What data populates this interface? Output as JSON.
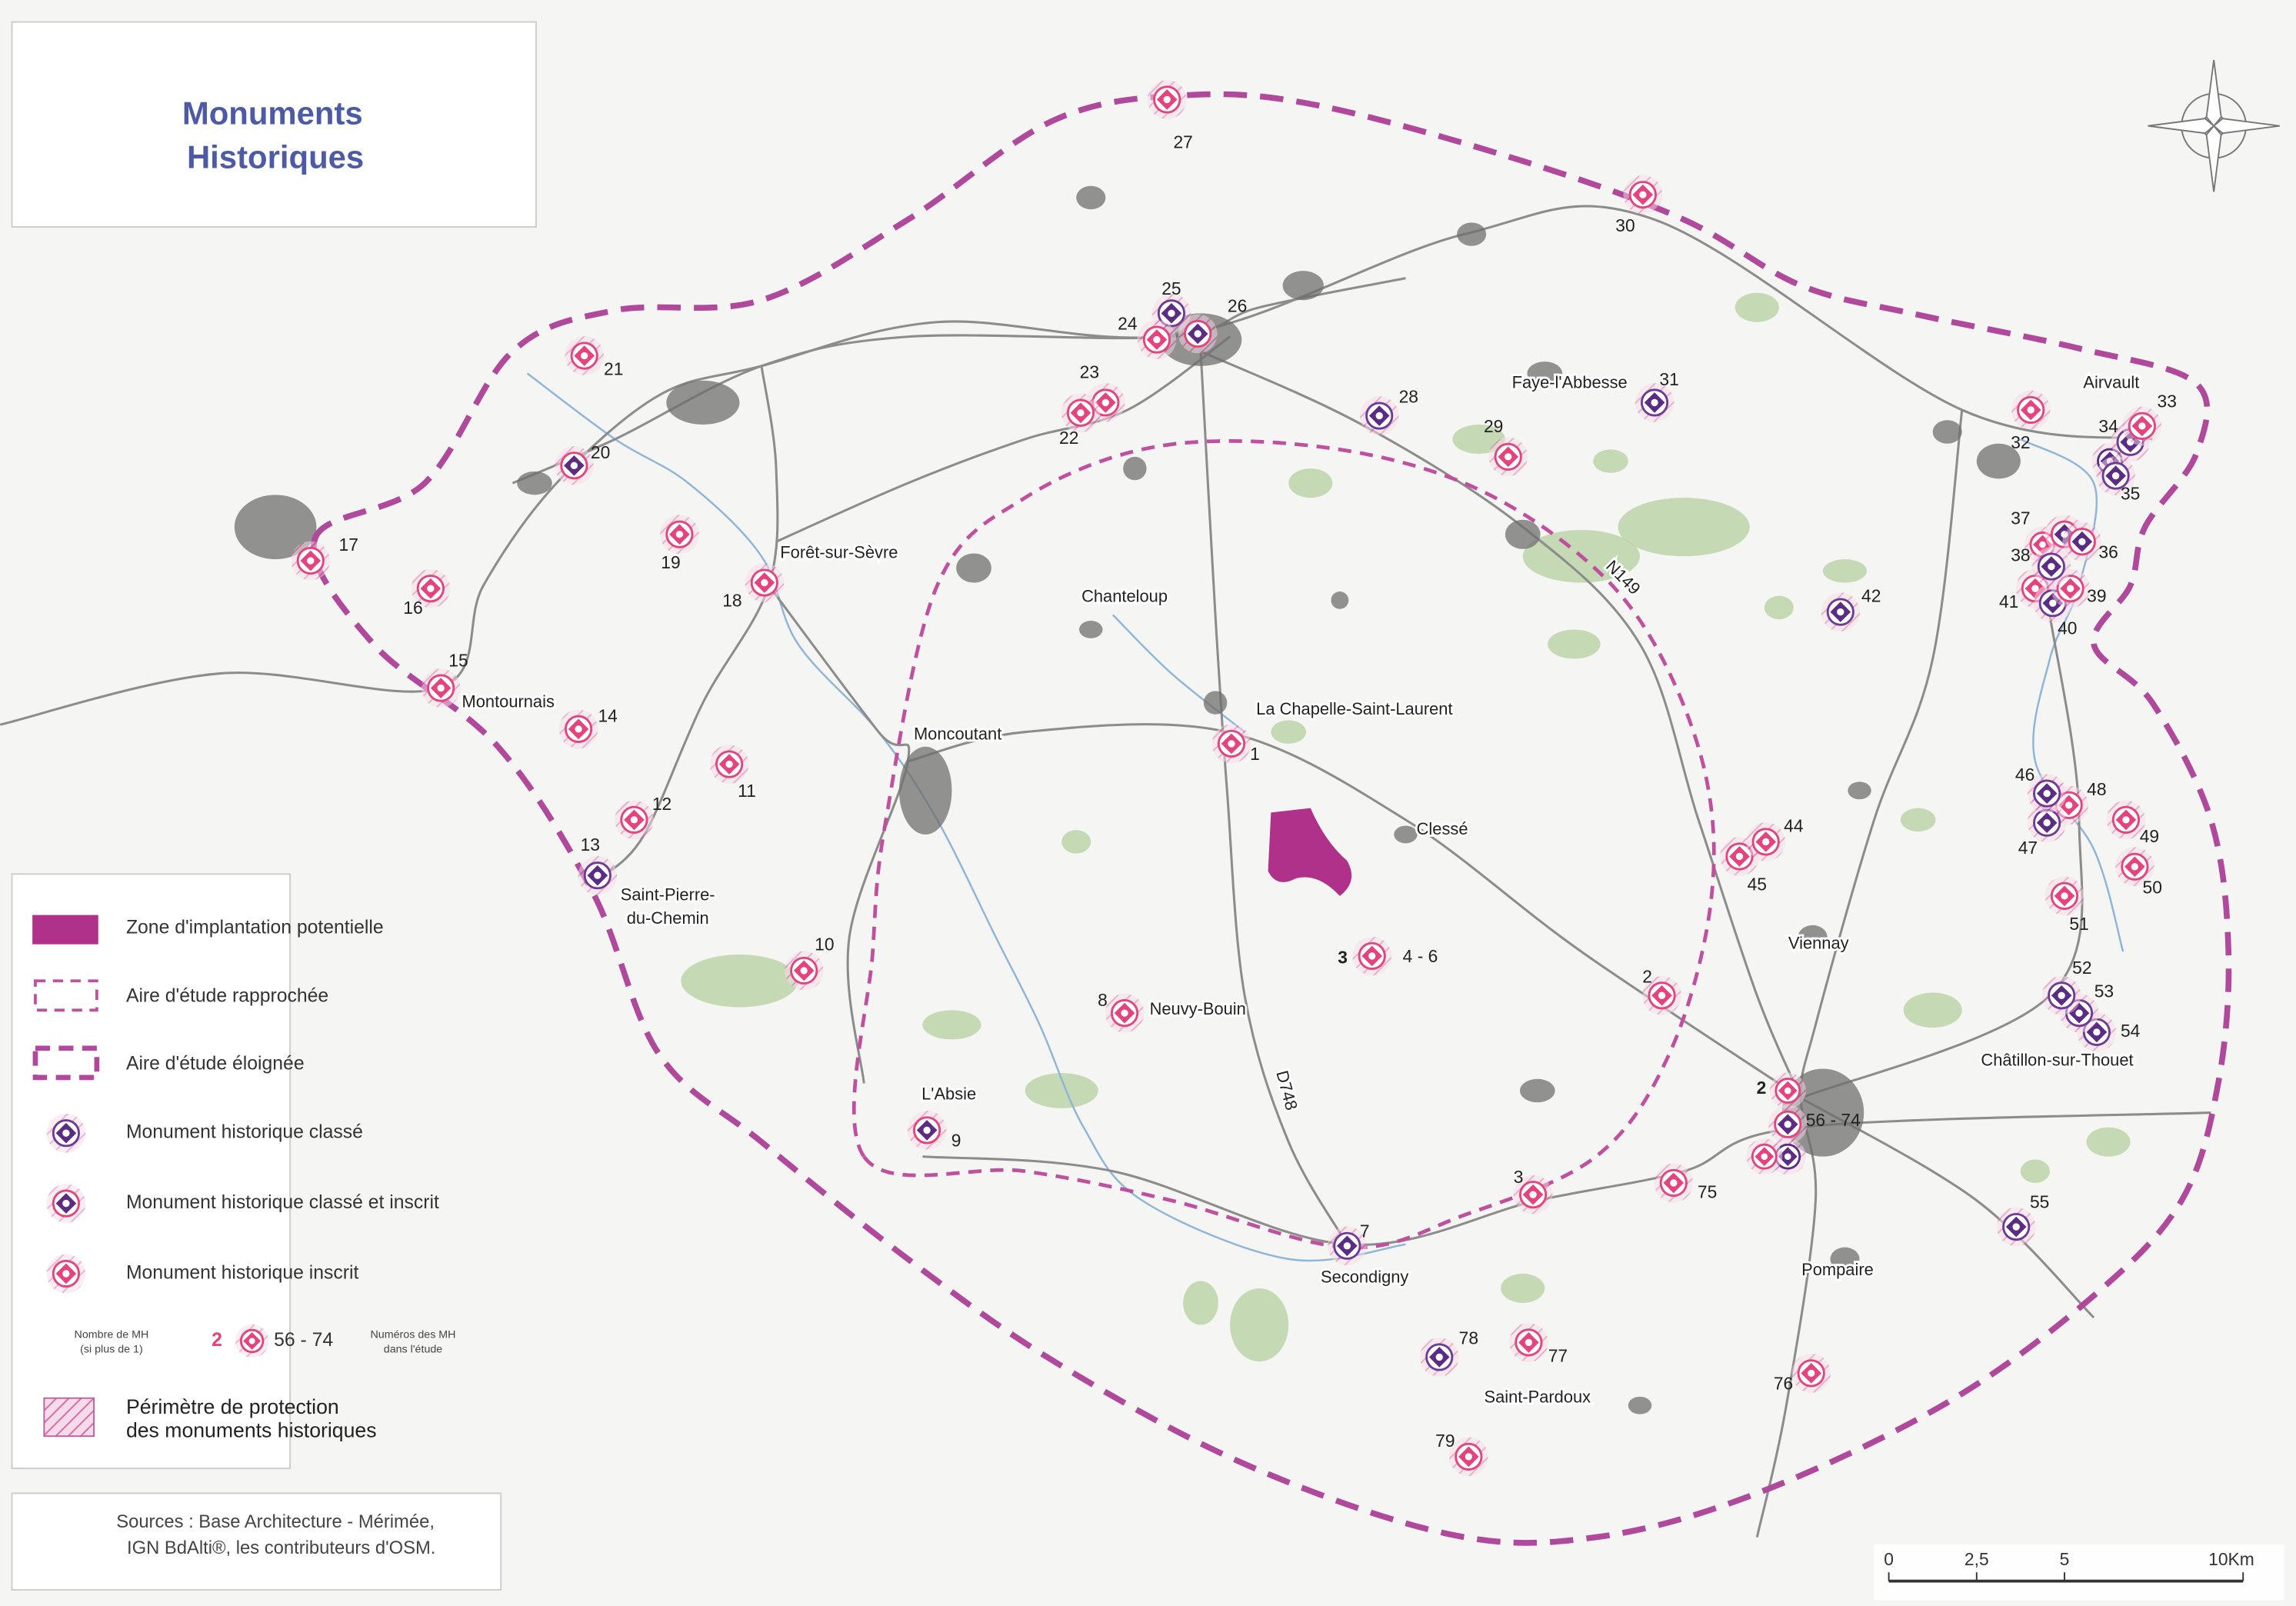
{
  "title": [
    "Monuments",
    "Historiques"
  ],
  "legend": {
    "items": [
      {
        "label": "Zone d'implantation potentielle",
        "color": "#b0318a"
      },
      {
        "label": "Aire d'étude rapprochée",
        "color": "#c0509f"
      },
      {
        "label": "Aire d'étude éloignée",
        "color": "#b0489b"
      },
      {
        "label": "Monument historique classé",
        "color": "#5b2c83",
        "ring": "#6d3a96"
      },
      {
        "label": "Monument historique classé et inscrit",
        "color": "#5b2c83",
        "ring": "#e6427c"
      },
      {
        "label": "Monument historique inscrit",
        "color": "#e6427c",
        "ring": "#e6427c"
      }
    ],
    "count_note": [
      "Nombre de MH",
      "(si plus de 1)"
    ],
    "count_example": 2,
    "number_example": "56 - 74",
    "number_note": [
      "Numéros des MH",
      "dans l'étude"
    ],
    "perimeter": [
      "Périmètre de protection",
      "des monuments historiques"
    ]
  },
  "sources": [
    "Sources : Base Architecture - Mérimée,",
    "IGN BdAlti®, les contributeurs d'OSM."
  ],
  "scale": [
    "0",
    "2,5",
    "5",
    "10Km"
  ],
  "places": [
    "Moncoutant",
    "La Chapelle-Saint-Laurent",
    "Chanteloup",
    "Forêt-sur-Sèvre",
    "Montournais",
    "Saint-Pierre-",
    "du-Chemin",
    "Neuvy-Bouin",
    "D748",
    "Clessé",
    "Viennay",
    "Châtillon-sur-Thouet",
    "Secondigny",
    "Saint-Pardoux",
    "Pompaire",
    "Airvault",
    "Faye-l'Abbesse",
    "L'Absie",
    "N149"
  ],
  "monuments": [
    {
      "label": "27",
      "color": "#e6427c",
      "ring": "#e6427c"
    },
    {
      "label": "30",
      "color": "#e6427c",
      "ring": "#e6427c"
    },
    {
      "label": "21",
      "color": "#e6427c",
      "ring": "#e6427c"
    },
    {
      "label": "20",
      "color": "#5b2c83",
      "ring": "#e6427c"
    },
    {
      "label": "25",
      "color": "#5b2c83",
      "ring": "#6d3a96"
    },
    {
      "label": "24",
      "color": "#e6427c",
      "ring": "#e6427c"
    },
    {
      "label": "26",
      "color": "#5b2c83",
      "ring": "#e6427c"
    },
    {
      "label": "23",
      "color": "#e6427c",
      "ring": "#e6427c"
    },
    {
      "label": "22",
      "color": "#e6427c",
      "ring": "#e6427c"
    },
    {
      "label": "28",
      "color": "#5b2c83",
      "ring": "#6d3a96"
    },
    {
      "label": "31",
      "color": "#5b2c83",
      "ring": "#6d3a96"
    },
    {
      "label": "29",
      "color": "#e6427c",
      "ring": "#e6427c"
    },
    {
      "label": "17",
      "color": "#e6427c",
      "ring": "#e6427c"
    },
    {
      "label": "16",
      "color": "#e6427c",
      "ring": "#e6427c"
    },
    {
      "label": "19",
      "color": "#e6427c",
      "ring": "#e6427c"
    },
    {
      "label": "18",
      "color": "#e6427c",
      "ring": "#e6427c"
    },
    {
      "label": "15",
      "color": "#e6427c",
      "ring": "#e6427c"
    },
    {
      "label": "14",
      "color": "#e6427c",
      "ring": "#e6427c"
    },
    {
      "label": "11",
      "color": "#e6427c",
      "ring": "#e6427c"
    },
    {
      "label": "12",
      "color": "#e6427c",
      "ring": "#e6427c"
    },
    {
      "label": "13",
      "color": "#5b2c83",
      "ring": "#6d3a96"
    },
    {
      "label": "10",
      "color": "#e6427c",
      "ring": "#e6427c"
    },
    {
      "label": "9",
      "color": "#5b2c83",
      "ring": "#e6427c"
    },
    {
      "label": "8",
      "color": "#e6427c",
      "ring": "#e6427c"
    },
    {
      "label": "4 - 6",
      "color": "#e6427c",
      "ring": "#e6427c",
      "count": 3
    },
    {
      "label": "1",
      "color": "#e6427c",
      "ring": "#e6427c"
    },
    {
      "label": "2",
      "color": "#e6427c",
      "ring": "#e6427c"
    },
    {
      "label": "3",
      "color": "#e6427c",
      "ring": "#e6427c"
    },
    {
      "label": "75",
      "color": "#e6427c",
      "ring": "#e6427c"
    },
    {
      "label": "7",
      "color": "#5b2c83",
      "ring": "#6d3a96"
    },
    {
      "label": "78",
      "color": "#5b2c83",
      "ring": "#6d3a96"
    },
    {
      "label": "77",
      "color": "#e6427c",
      "ring": "#e6427c"
    },
    {
      "label": "79",
      "color": "#e6427c",
      "ring": "#e6427c"
    },
    {
      "label": "76",
      "color": "#e6427c",
      "ring": "#e6427c"
    },
    {
      "label": "55",
      "color": "#5b2c83",
      "ring": "#6d3a96"
    },
    {
      "label": "54",
      "color": "#5b2c83",
      "ring": "#6d3a96"
    },
    {
      "label": "53",
      "color": "#5b2c83",
      "ring": "#6d3a96"
    },
    {
      "label": "52",
      "color": "#5b2c83",
      "ring": "#6d3a96"
    },
    {
      "label": "51",
      "color": "#e6427c",
      "ring": "#e6427c"
    },
    {
      "label": "50",
      "color": "#e6427c",
      "ring": "#e6427c"
    },
    {
      "label": "49",
      "color": "#e6427c",
      "ring": "#e6427c"
    },
    {
      "label": "48",
      "color": "#e6427c",
      "ring": "#e6427c"
    },
    {
      "label": "47",
      "color": "#5b2c83",
      "ring": "#6d3a96"
    },
    {
      "label": "46",
      "color": "#5b2c83",
      "ring": "#6d3a96"
    },
    {
      "label": "45",
      "color": "#e6427c",
      "ring": "#e6427c"
    },
    {
      "label": "44",
      "color": "#e6427c",
      "ring": "#e6427c"
    },
    {
      "label": "42",
      "color": "#5b2c83",
      "ring": "#6d3a96"
    },
    {
      "label": "41",
      "color": "#e6427c",
      "ring": "#e6427c"
    },
    {
      "label": "40",
      "color": "#5b2c83",
      "ring": "#6d3a96"
    },
    {
      "label": "39",
      "color": "#e6427c",
      "ring": "#e6427c"
    },
    {
      "label": "38",
      "color": "#5b2c83",
      "ring": "#6d3a96"
    },
    {
      "label": "37",
      "color": "#5b2c83",
      "ring": "#e6427c"
    },
    {
      "label": "36",
      "color": "#5b2c83",
      "ring": "#e6427c"
    },
    {
      "label": "35",
      "color": "#5b2c83",
      "ring": "#6d3a96"
    },
    {
      "label": "34",
      "color": "#5b2c83",
      "ring": "#6d3a96"
    },
    {
      "label": "33",
      "color": "#e6427c",
      "ring": "#e6427c"
    },
    {
      "label": "32",
      "color": "#e6427c",
      "ring": "#e6427c"
    },
    {
      "label": "56 - 74",
      "color": "#5b2c83",
      "ring": "#e6427c",
      "count": 2
    }
  ]
}
